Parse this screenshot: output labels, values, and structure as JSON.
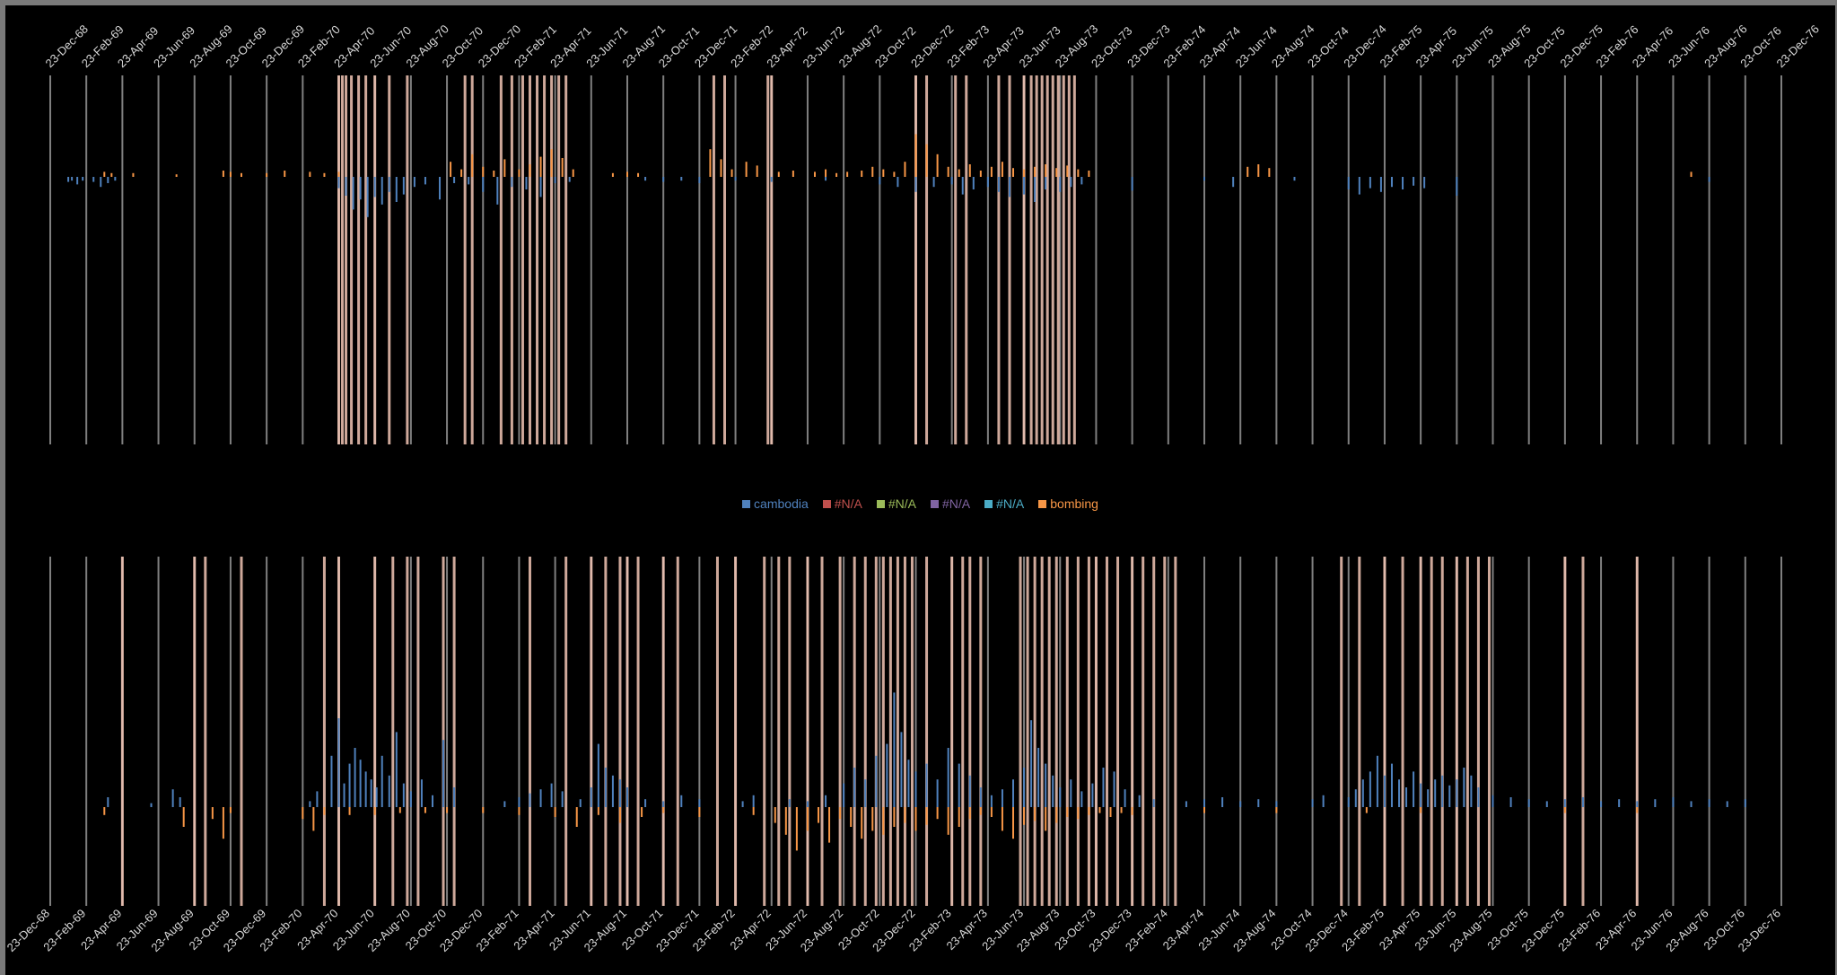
{
  "chart_data": [
    {
      "type": "bar",
      "panel": "top",
      "x_tick_labels": [
        "23-Dec-68",
        "23-Feb-69",
        "23-Apr-69",
        "23-Jun-69",
        "23-Aug-69",
        "23-Oct-69",
        "23-Dec-69",
        "23-Feb-70",
        "23-Apr-70",
        "23-Jun-70",
        "23-Aug-70",
        "23-Oct-70",
        "23-Dec-70",
        "23-Feb-71",
        "23-Apr-71",
        "23-Jun-71",
        "23-Aug-71",
        "23-Oct-71",
        "23-Dec-71",
        "23-Feb-72",
        "23-Apr-72",
        "23-Jun-72",
        "23-Aug-72",
        "23-Oct-72",
        "23-Dec-72",
        "23-Feb-73",
        "23-Apr-73",
        "23-Jun-73",
        "23-Aug-73",
        "23-Oct-73",
        "23-Dec-73",
        "23-Feb-74",
        "23-Apr-74",
        "23-Jun-74",
        "23-Aug-74",
        "23-Oct-74",
        "23-Dec-74",
        "23-Feb-75",
        "23-Apr-75",
        "23-Jun-75",
        "23-Aug-75",
        "23-Oct-75",
        "23-Dec-75",
        "23-Feb-76",
        "23-Apr-76",
        "23-Jun-76",
        "23-Aug-76",
        "23-Oct-76",
        "23-Dec-76"
      ],
      "x_range_index": [
        0,
        48
      ],
      "grid_vertical": true,
      "highlight_band_positions": [
        8.0,
        8.1,
        8.2,
        8.35,
        8.55,
        8.75,
        9.0,
        9.4,
        9.9,
        11.5,
        11.7,
        12.5,
        12.8,
        13.1,
        13.3,
        13.5,
        13.7,
        13.9,
        14.1,
        14.3,
        18.4,
        18.7,
        19.9,
        20.0,
        24.0,
        24.3,
        25.1,
        25.4,
        26.3,
        26.6,
        27.0,
        27.2,
        27.35,
        27.5,
        27.65,
        27.8,
        27.95,
        28.1,
        28.25,
        28.4
      ],
      "series": [
        {
          "name": "cambodia",
          "direction": "down",
          "positions": [
            0.5,
            0.6,
            0.75,
            0.9,
            1.2,
            1.4,
            1.6,
            1.8,
            8.0,
            8.2,
            8.4,
            8.6,
            8.8,
            9.0,
            9.2,
            9.4,
            9.6,
            9.8,
            10.1,
            10.4,
            10.8,
            11.2,
            11.6,
            12.0,
            12.4,
            12.8,
            13.2,
            13.6,
            14.0,
            14.4,
            16.5,
            17.0,
            17.5,
            18.0,
            19.0,
            20.0,
            21.5,
            23.0,
            23.5,
            24.0,
            24.5,
            25.0,
            25.3,
            25.6,
            26.0,
            26.3,
            26.6,
            27.0,
            27.3,
            27.6,
            28.0,
            28.3,
            28.6,
            30.0,
            32.0,
            32.8,
            34.5,
            36.0,
            36.3,
            36.6,
            36.9,
            37.2,
            37.5,
            37.8,
            38.1,
            39.0,
            46.0
          ],
          "values": [
            0.4,
            0.3,
            0.6,
            0.3,
            0.4,
            0.8,
            0.5,
            0.3,
            0.9,
            1.5,
            2.6,
            1.8,
            3.2,
            1.6,
            2.2,
            1.2,
            2.0,
            1.4,
            0.8,
            0.6,
            1.8,
            0.5,
            0.6,
            1.2,
            2.2,
            0.8,
            1.0,
            1.6,
            0.5,
            0.4,
            0.3,
            0.4,
            0.3,
            0.5,
            0.3,
            0.4,
            0.3,
            0.6,
            0.8,
            1.2,
            0.8,
            0.6,
            1.4,
            1.0,
            0.8,
            1.2,
            1.6,
            1.4,
            2.0,
            1.0,
            1.2,
            0.8,
            0.6,
            1.1,
            0.3,
            0.8,
            0.3,
            1.0,
            1.4,
            0.9,
            1.2,
            0.8,
            1.0,
            0.7,
            0.9,
            1.5,
            0.4
          ]
        },
        {
          "name": "bombing",
          "direction": "up",
          "positions": [
            1.5,
            1.7,
            2.3,
            3.5,
            4.8,
            5.0,
            5.3,
            6.0,
            6.5,
            7.2,
            7.6,
            8.0,
            11.1,
            11.4,
            11.7,
            12.0,
            12.3,
            12.6,
            13.0,
            13.3,
            13.6,
            13.9,
            14.2,
            14.5,
            15.6,
            16.0,
            16.3,
            18.3,
            18.6,
            18.9,
            19.3,
            19.6,
            20.2,
            20.6,
            21.2,
            21.5,
            21.8,
            22.1,
            22.5,
            22.8,
            23.1,
            23.4,
            23.7,
            24.0,
            24.3,
            24.6,
            24.9,
            25.2,
            25.5,
            25.8,
            26.1,
            26.4,
            26.7,
            27.0,
            27.3,
            27.6,
            27.9,
            28.2,
            28.5,
            28.8,
            33.2,
            33.5,
            33.8,
            45.5
          ],
          "values": [
            0.4,
            0.3,
            0.3,
            0.2,
            0.5,
            0.4,
            0.3,
            0.3,
            0.5,
            0.4,
            0.3,
            0.4,
            1.2,
            0.6,
            1.8,
            0.8,
            0.5,
            1.4,
            0.6,
            1.0,
            1.6,
            2.2,
            1.5,
            0.6,
            0.3,
            0.4,
            0.3,
            2.2,
            1.4,
            0.6,
            1.2,
            0.9,
            0.4,
            0.5,
            0.4,
            0.6,
            0.3,
            0.4,
            0.5,
            0.8,
            0.6,
            0.4,
            1.2,
            3.4,
            2.6,
            1.8,
            0.8,
            0.6,
            1.0,
            0.5,
            0.8,
            1.2,
            0.7,
            0.6,
            0.8,
            1.0,
            0.7,
            0.9,
            0.6,
            0.5,
            0.8,
            1.0,
            0.7,
            0.4
          ]
        }
      ]
    },
    {
      "type": "bar",
      "panel": "bottom",
      "x_tick_labels": [
        "23-Dec-68",
        "23-Feb-69",
        "23-Apr-69",
        "23-Jun-69",
        "23-Aug-69",
        "23-Oct-69",
        "23-Dec-69",
        "23-Feb-70",
        "23-Apr-70",
        "23-Jun-70",
        "23-Aug-70",
        "23-Oct-70",
        "23-Dec-70",
        "23-Feb-71",
        "23-Apr-71",
        "23-Jun-71",
        "23-Aug-71",
        "23-Oct-71",
        "23-Dec-71",
        "23-Feb-72",
        "23-Apr-72",
        "23-Jun-72",
        "23-Aug-72",
        "23-Oct-72",
        "23-Dec-72",
        "23-Feb-73",
        "23-Apr-73",
        "23-Jun-73",
        "23-Aug-73",
        "23-Oct-73",
        "23-Dec-73",
        "23-Feb-74",
        "23-Apr-74",
        "23-Jun-74",
        "23-Aug-74",
        "23-Oct-74",
        "23-Dec-74",
        "23-Feb-75",
        "23-Apr-75",
        "23-Jun-75",
        "23-Aug-75",
        "23-Oct-75",
        "23-Dec-75",
        "23-Feb-76",
        "23-Apr-76",
        "23-Jun-76",
        "23-Aug-76",
        "23-Oct-76",
        "23-Dec-76"
      ],
      "x_range_index": [
        0,
        48
      ],
      "grid_vertical": true,
      "highlight_band_positions": [
        2.0,
        4.0,
        4.3,
        5.3,
        7.6,
        8.0,
        9.0,
        9.5,
        9.9,
        10.2,
        10.9,
        11.2,
        13.3,
        14.3,
        15.0,
        15.4,
        15.8,
        16.0,
        16.3,
        17.0,
        17.4,
        18.5,
        19.0,
        19.8,
        20.2,
        20.5,
        21.0,
        21.4,
        21.9,
        22.3,
        22.6,
        22.9,
        23.1,
        23.3,
        23.5,
        23.7,
        23.9,
        24.3,
        25.0,
        25.3,
        25.5,
        25.8,
        26.9,
        27.1,
        27.3,
        27.5,
        27.7,
        27.9,
        28.2,
        28.5,
        28.8,
        29.0,
        29.3,
        29.6,
        30.0,
        30.3,
        30.6,
        30.9,
        31.2,
        35.8,
        36.3,
        37.0,
        37.5,
        38.0,
        38.3,
        38.6,
        39.0,
        39.3,
        39.6,
        39.9,
        42.0,
        42.5,
        44.0
      ],
      "series": [
        {
          "name": "cambodia",
          "direction": "up",
          "positions": [
            1.6,
            2.8,
            3.4,
            3.6,
            7.2,
            7.4,
            7.8,
            8.0,
            8.15,
            8.3,
            8.45,
            8.6,
            8.75,
            8.9,
            9.05,
            9.2,
            9.4,
            9.6,
            9.8,
            10.0,
            10.3,
            10.6,
            10.9,
            11.2,
            12.6,
            13.0,
            13.3,
            13.6,
            13.9,
            14.2,
            14.7,
            15.0,
            15.2,
            15.4,
            15.6,
            15.8,
            16.0,
            16.5,
            17.0,
            17.5,
            18.0,
            19.2,
            19.5,
            20.5,
            21.0,
            21.5,
            22.0,
            22.3,
            22.6,
            22.9,
            23.2,
            23.4,
            23.6,
            23.8,
            24.0,
            24.3,
            24.6,
            24.9,
            25.2,
            25.5,
            25.8,
            26.1,
            26.4,
            26.7,
            27.0,
            27.2,
            27.4,
            27.6,
            27.8,
            28.0,
            28.3,
            28.6,
            28.9,
            29.2,
            29.5,
            29.8,
            30.2,
            30.6,
            31.5,
            32.0,
            32.5,
            33.0,
            33.5,
            34.0,
            35.0,
            35.3,
            36.0,
            36.2,
            36.4,
            36.6,
            36.8,
            37.0,
            37.2,
            37.4,
            37.6,
            37.8,
            38.0,
            38.2,
            38.4,
            38.6,
            38.8,
            39.0,
            39.2,
            39.4,
            39.6,
            40.0,
            40.5,
            41.0,
            41.5,
            42.0,
            42.5,
            43.0,
            43.5,
            44.0,
            44.5,
            45.0,
            45.5,
            46.0,
            46.5,
            47.0
          ],
          "values": [
            0.5,
            0.2,
            0.9,
            0.5,
            0.3,
            0.8,
            2.6,
            4.5,
            1.2,
            2.2,
            3.0,
            2.4,
            1.8,
            1.4,
            1.0,
            2.6,
            1.6,
            3.8,
            1.2,
            0.8,
            1.4,
            0.6,
            3.4,
            1.0,
            0.3,
            0.5,
            0.7,
            0.9,
            1.2,
            0.8,
            0.4,
            1.0,
            3.2,
            2.0,
            1.6,
            1.4,
            1.0,
            0.4,
            0.3,
            0.6,
            0.4,
            0.3,
            0.6,
            0.4,
            0.3,
            0.6,
            1.2,
            2.0,
            1.4,
            2.6,
            3.2,
            5.8,
            3.8,
            2.4,
            1.8,
            2.2,
            1.4,
            3.0,
            2.2,
            1.6,
            1.0,
            0.6,
            0.9,
            1.4,
            2.0,
            4.4,
            3.0,
            2.2,
            1.6,
            1.0,
            1.4,
            0.8,
            1.2,
            2.0,
            1.8,
            0.9,
            0.6,
            0.4,
            0.3,
            0.4,
            0.5,
            0.3,
            0.4,
            0.3,
            0.4,
            0.6,
            0.5,
            0.9,
            1.4,
            1.8,
            2.6,
            1.6,
            2.2,
            1.4,
            1.0,
            1.8,
            1.2,
            0.9,
            1.4,
            1.6,
            1.1,
            1.4,
            2.0,
            1.6,
            1.0,
            0.6,
            0.5,
            0.4,
            0.3,
            0.4,
            0.5,
            0.3,
            0.4,
            0.3,
            0.4,
            0.5,
            0.3,
            0.4,
            0.3,
            0.4
          ]
        },
        {
          "name": "bombing",
          "direction": "down",
          "positions": [
            1.5,
            3.7,
            4.5,
            4.8,
            5.0,
            7.0,
            7.3,
            7.6,
            8.3,
            9.0,
            9.7,
            10.4,
            11.0,
            12.0,
            13.0,
            14.0,
            14.6,
            15.2,
            15.8,
            16.4,
            17.0,
            18.0,
            19.5,
            20.1,
            20.4,
            20.7,
            21.0,
            21.3,
            21.6,
            21.9,
            22.2,
            22.5,
            22.8,
            23.1,
            23.4,
            23.7,
            24.0,
            24.3,
            24.6,
            24.9,
            25.2,
            25.5,
            25.8,
            26.1,
            26.4,
            26.7,
            27.0,
            27.3,
            27.6,
            27.9,
            28.2,
            28.5,
            28.8,
            29.1,
            29.4,
            29.7,
            30.0,
            32.0,
            34.0,
            36.5,
            38.0,
            42.0,
            44.0
          ],
          "values": [
            0.4,
            1.0,
            0.6,
            1.6,
            0.3,
            0.6,
            1.2,
            0.4,
            0.4,
            0.4,
            0.3,
            0.3,
            0.3,
            0.3,
            0.4,
            0.5,
            1.0,
            0.4,
            0.8,
            0.5,
            0.3,
            0.5,
            0.4,
            0.8,
            1.4,
            2.2,
            1.2,
            0.8,
            1.8,
            0.6,
            1.0,
            1.6,
            1.2,
            1.4,
            1.0,
            0.8,
            1.2,
            0.9,
            0.6,
            1.4,
            1.0,
            0.6,
            0.4,
            0.5,
            1.2,
            1.6,
            0.9,
            0.7,
            1.2,
            0.8,
            0.5,
            0.6,
            0.4,
            0.3,
            0.5,
            0.3,
            0.4,
            0.3,
            0.3,
            0.3,
            0.3,
            0.3,
            0.3
          ]
        }
      ]
    }
  ],
  "legend": {
    "items": [
      {
        "label": "cambodia",
        "color": "#4f81bd"
      },
      {
        "label": "#N/A",
        "color": "#c0504d"
      },
      {
        "label": "#N/A",
        "color": "#9bbb59"
      },
      {
        "label": "#N/A",
        "color": "#8064a2"
      },
      {
        "label": "#N/A",
        "color": "#4bacc6"
      },
      {
        "label": "bombing",
        "color": "#f79646"
      }
    ]
  },
  "colors": {
    "background": "#000000",
    "gridline": "#7f7f7f",
    "highlight_band": "#f2c5b5",
    "cambodia": "#4f81bd",
    "bombing": "#f79646",
    "tick_text": "#d9d9d9"
  }
}
